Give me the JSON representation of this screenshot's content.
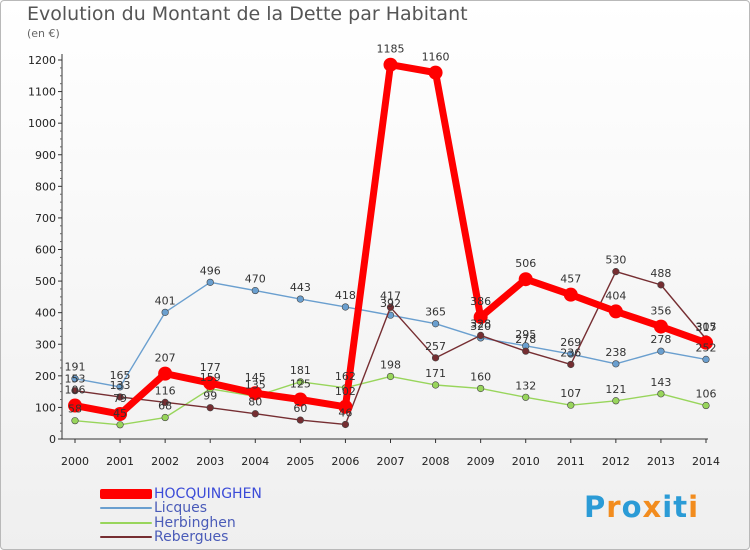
{
  "header": {
    "title": "Evolution du Montant de la Dette par Habitant",
    "unit": "(en €)"
  },
  "logo": {
    "text": "Proxiti"
  },
  "chart_data": {
    "type": "line",
    "title": "Evolution du Montant de la Dette par Habitant",
    "ylabel": "(en €)",
    "xlabel": "",
    "ylim": [
      0,
      1200
    ],
    "yticks": [
      0,
      100,
      200,
      300,
      400,
      500,
      600,
      700,
      800,
      900,
      1000,
      1100,
      1200
    ],
    "grid": false,
    "legend_position": "bottom-left",
    "categories": [
      "2000",
      "2001",
      "2002",
      "2003",
      "2004",
      "2005",
      "2006",
      "2007",
      "2008",
      "2009",
      "2010",
      "2011",
      "2012",
      "2013",
      "2014"
    ],
    "series": [
      {
        "name": "HOCQUINGHEN",
        "color": "#ff0000",
        "emphasis": true,
        "values": [
          106,
          79,
          207,
          177,
          145,
          125,
          102,
          1185,
          1160,
          386,
          506,
          457,
          404,
          356,
          305
        ]
      },
      {
        "name": "Licques",
        "color": "#6a9fcf",
        "emphasis": false,
        "values": [
          191,
          165,
          401,
          496,
          470,
          443,
          418,
          392,
          365,
          320,
          295,
          269,
          238,
          278,
          252
        ]
      },
      {
        "name": "Herbinghen",
        "color": "#98d55b",
        "emphasis": false,
        "values": [
          58,
          45,
          68,
          159,
          135,
          181,
          162,
          198,
          171,
          160,
          132,
          107,
          121,
          143,
          106
        ]
      },
      {
        "name": "Rebergues",
        "color": "#762e32",
        "emphasis": false,
        "values": [
          153,
          133,
          116,
          99,
          80,
          60,
          46,
          417,
          257,
          328,
          278,
          236,
          530,
          488,
          317
        ]
      }
    ]
  }
}
